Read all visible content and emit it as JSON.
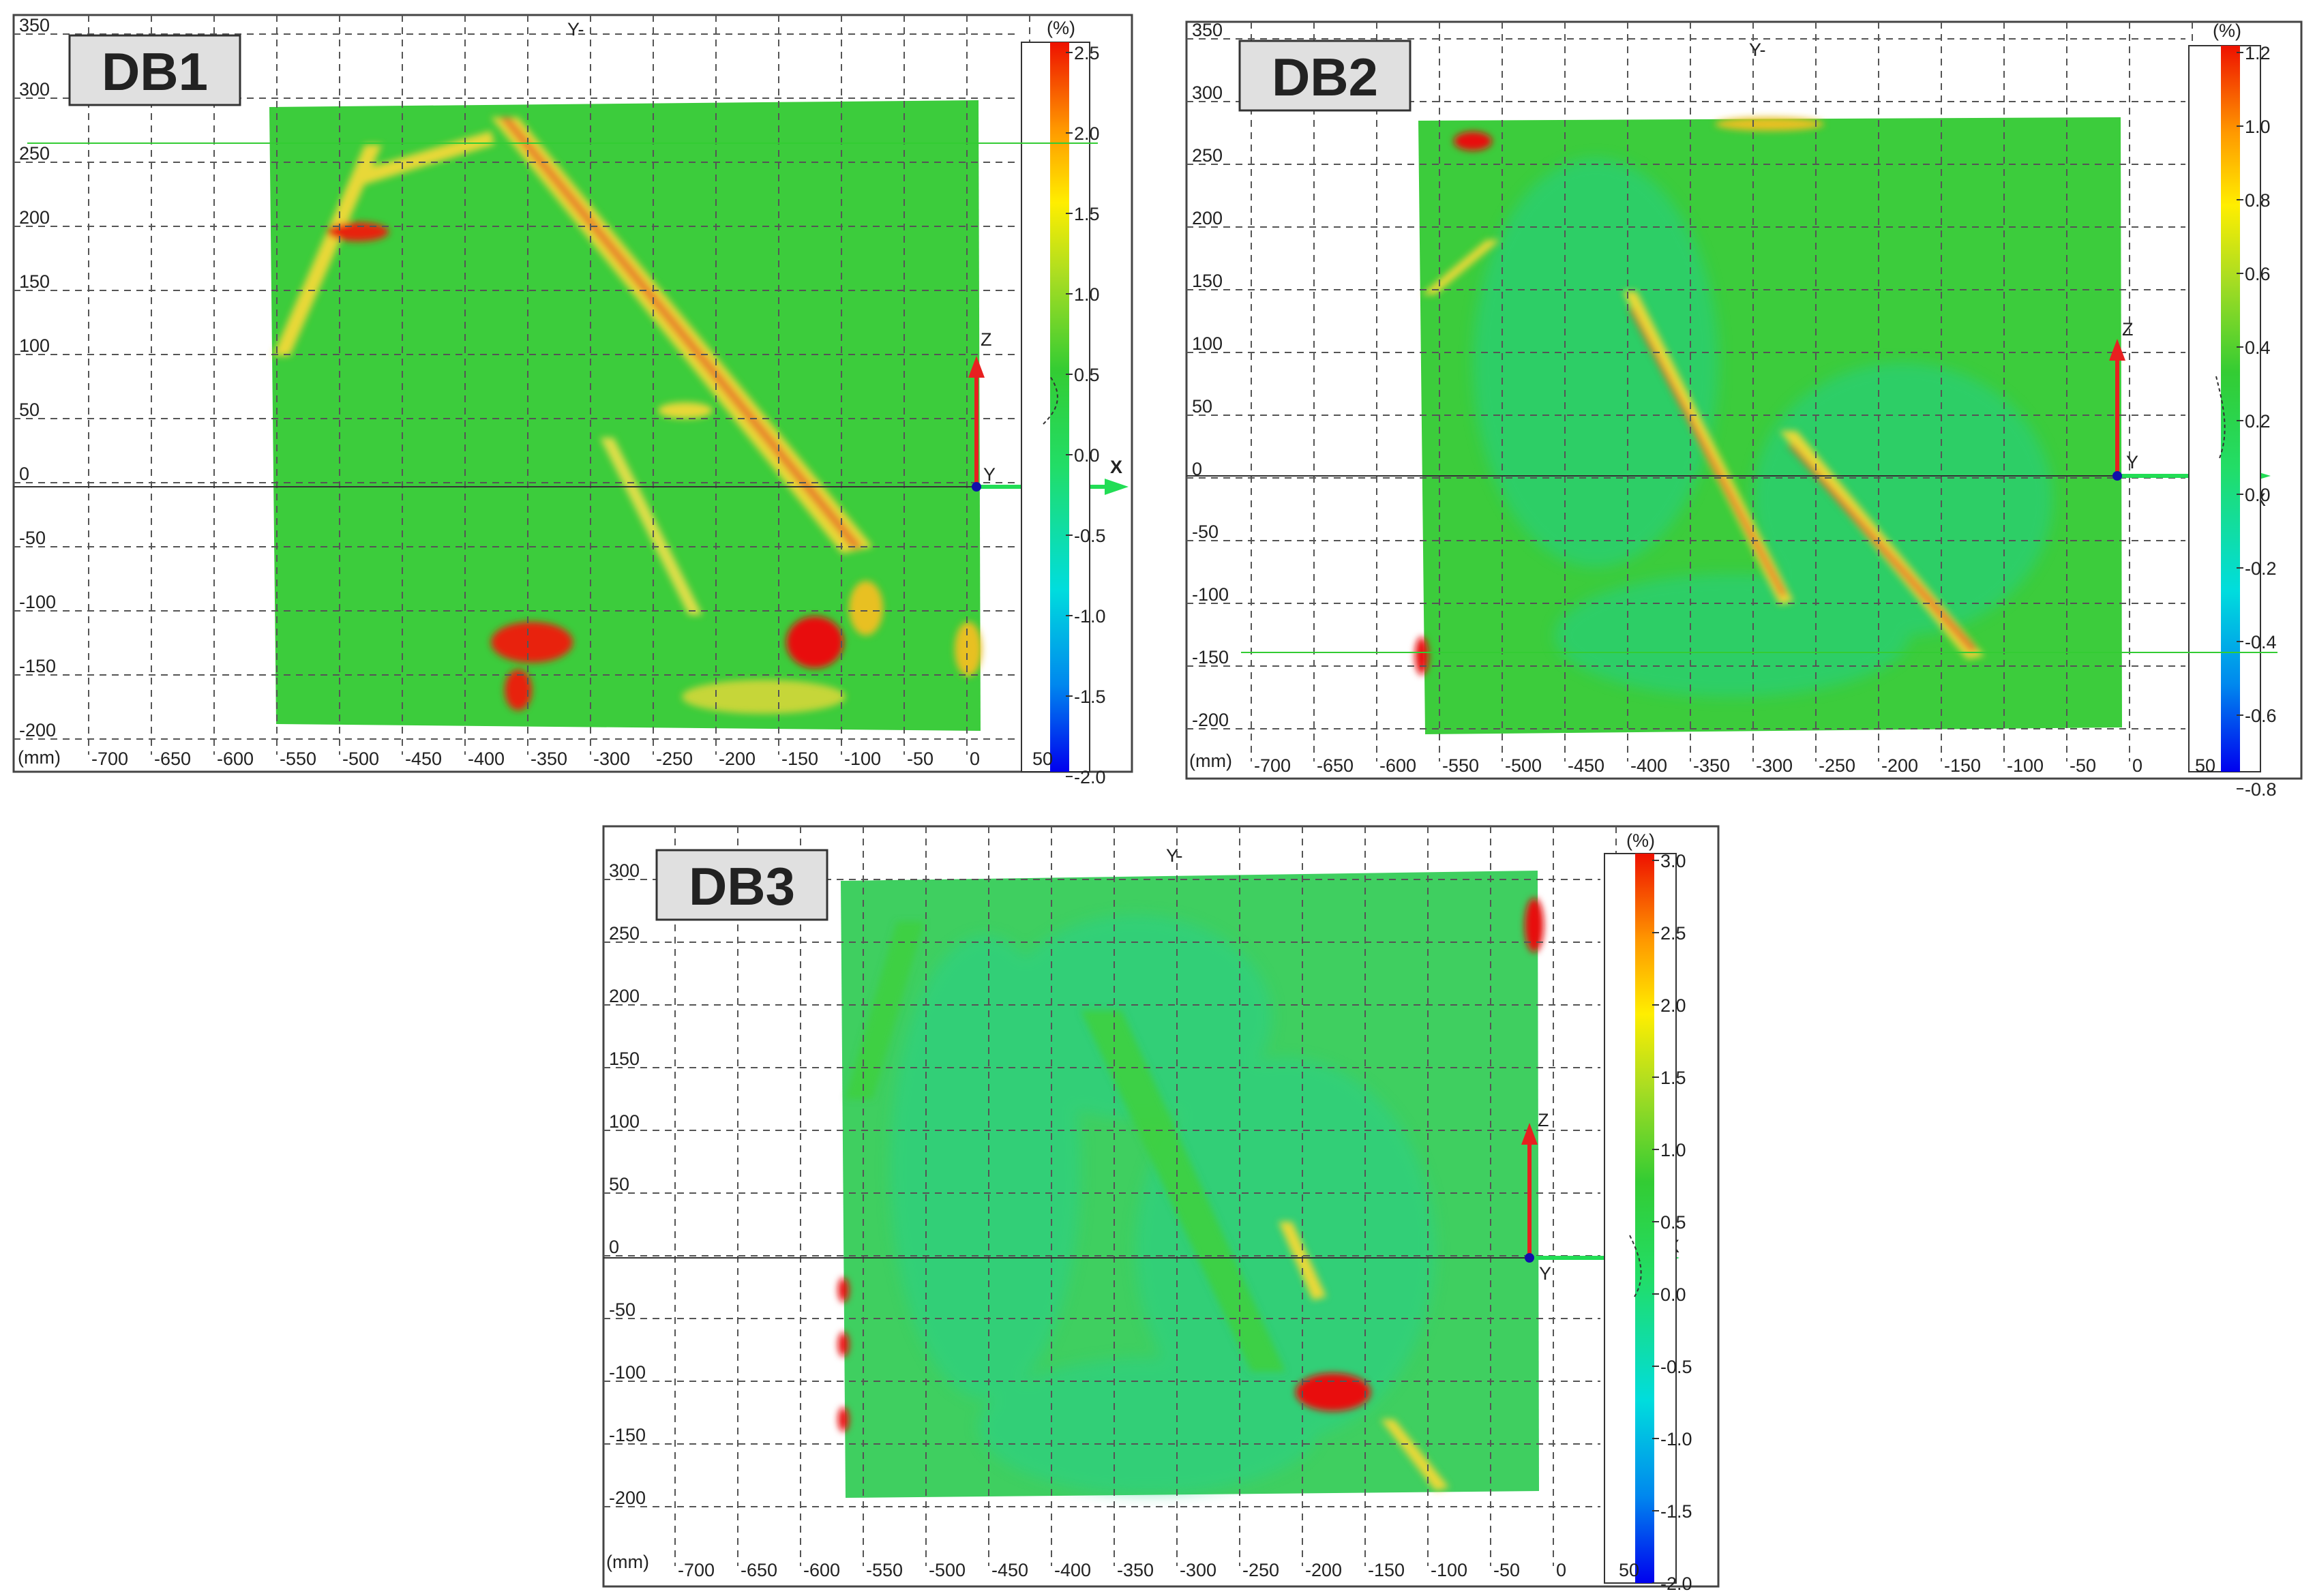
{
  "units_label": "(mm)",
  "percent_label": "(%)",
  "axis_labels": {
    "y_minus": "Y-",
    "z": "Z",
    "y": "Y",
    "x": "X"
  },
  "colors": {
    "field": "#33cc33",
    "crack": "#f0d020",
    "hot": "#e8100c",
    "axis_red": "#e82020",
    "axis_green": "#22dd55",
    "origin": "#1010aa"
  },
  "panels": [
    {
      "id": "DB1",
      "x_ticks": [
        "-700",
        "-650",
        "-600",
        "-550",
        "-500",
        "-450",
        "-400",
        "-350",
        "-300",
        "-250",
        "-200",
        "-150",
        "-100",
        "-50",
        "0",
        "50"
      ],
      "y_ticks": [
        "350",
        "300",
        "250",
        "200",
        "150",
        "100",
        "50",
        "0",
        "-50",
        "-100",
        "-150",
        "-200"
      ],
      "colorbar_ticks": [
        "2.5",
        "2.0",
        "1.5",
        "1.0",
        "0.5",
        "0.0",
        "-0.5",
        "-1.0",
        "-1.5",
        "-2.0"
      ],
      "colorbar_range": [
        -2.0,
        2.7
      ]
    },
    {
      "id": "DB2",
      "x_ticks": [
        "-700",
        "-650",
        "-600",
        "-550",
        "-500",
        "-450",
        "-400",
        "-350",
        "-300",
        "-250",
        "-200",
        "-150",
        "-100",
        "-50",
        "0",
        "50"
      ],
      "y_ticks": [
        "350",
        "300",
        "250",
        "200",
        "150",
        "100",
        "50",
        "0",
        "-50",
        "-100",
        "-150",
        "-200"
      ],
      "colorbar_ticks": [
        "1.2",
        "1.0",
        "0.8",
        "0.6",
        "0.4",
        "0.2",
        "0.0",
        "-0.2",
        "-0.4",
        "-0.6",
        "-0.8"
      ],
      "colorbar_range": [
        -0.8,
        1.2
      ]
    },
    {
      "id": "DB3",
      "x_ticks": [
        "-700",
        "-650",
        "-600",
        "-550",
        "-500",
        "-450",
        "-400",
        "-350",
        "-300",
        "-250",
        "-200",
        "-150",
        "-100",
        "-50",
        "0",
        "50"
      ],
      "y_ticks": [
        "300",
        "250",
        "200",
        "150",
        "100",
        "50",
        "0",
        "-50",
        "-100",
        "-150",
        "-200"
      ],
      "colorbar_ticks": [
        "3.0",
        "2.5",
        "2.0",
        "1.5",
        "1.0",
        "0.5",
        "0.0",
        "-0.5",
        "-1.0",
        "-1.5",
        "-2.0"
      ],
      "colorbar_range": [
        -2.0,
        3.0
      ]
    }
  ]
}
